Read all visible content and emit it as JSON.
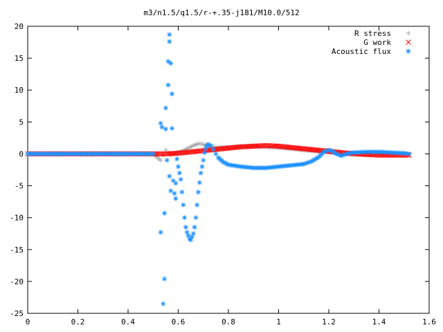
{
  "chart_data": {
    "type": "scatter",
    "title": "m3/n1.5/q1.5/r-+.35-j181/M10.0/512",
    "xlabel": "",
    "ylabel": "",
    "xlim": [
      0,
      1.6
    ],
    "ylim": [
      -25,
      20
    ],
    "x_ticks": [
      "0",
      "0.2",
      "0.4",
      "0.6",
      "0.8",
      "1",
      "1.2",
      "1.4",
      "1.6"
    ],
    "y_ticks": [
      "20",
      "15",
      "10",
      "5",
      "0",
      "-5",
      "-10",
      "-15",
      "-20",
      "-25"
    ],
    "grid": false,
    "legend_position": "top-right",
    "series": [
      {
        "name": "R stress",
        "marker": "+",
        "color": "#a0a0a0",
        "points": [
          [
            0.0,
            0
          ],
          [
            0.1,
            0
          ],
          [
            0.2,
            0
          ],
          [
            0.3,
            0
          ],
          [
            0.4,
            0
          ],
          [
            0.5,
            0
          ],
          [
            0.53,
            -1.0
          ],
          [
            0.54,
            -0.3
          ],
          [
            0.55,
            0.6
          ],
          [
            0.56,
            0.2
          ],
          [
            0.57,
            -0.2
          ],
          [
            0.58,
            0
          ],
          [
            0.6,
            0.2
          ],
          [
            0.62,
            0.5
          ],
          [
            0.64,
            0.9
          ],
          [
            0.66,
            1.3
          ],
          [
            0.68,
            1.6
          ],
          [
            0.7,
            1.5
          ],
          [
            0.72,
            1.2
          ],
          [
            0.75,
            1.0
          ],
          [
            0.8,
            1.0
          ],
          [
            0.85,
            1.1
          ],
          [
            0.9,
            1.2
          ],
          [
            0.95,
            1.1
          ],
          [
            1.0,
            1.0
          ],
          [
            1.05,
            0.8
          ],
          [
            1.1,
            0.6
          ],
          [
            1.15,
            0.4
          ],
          [
            1.2,
            0.3
          ],
          [
            1.25,
            0.1
          ],
          [
            1.3,
            0.1
          ],
          [
            1.35,
            0.1
          ],
          [
            1.4,
            0.05
          ],
          [
            1.45,
            0.05
          ],
          [
            1.5,
            0
          ]
        ]
      },
      {
        "name": "G work",
        "marker": "x",
        "color": "#ff0000",
        "points": [
          [
            0.0,
            0
          ],
          [
            0.1,
            0
          ],
          [
            0.2,
            0
          ],
          [
            0.3,
            0
          ],
          [
            0.4,
            0
          ],
          [
            0.5,
            0
          ],
          [
            0.55,
            0
          ],
          [
            0.6,
            0.1
          ],
          [
            0.65,
            0.3
          ],
          [
            0.7,
            0.5
          ],
          [
            0.75,
            0.7
          ],
          [
            0.8,
            0.9
          ],
          [
            0.85,
            1.1
          ],
          [
            0.9,
            1.2
          ],
          [
            0.95,
            1.3
          ],
          [
            1.0,
            1.2
          ],
          [
            1.05,
            1.0
          ],
          [
            1.1,
            0.8
          ],
          [
            1.15,
            0.6
          ],
          [
            1.2,
            0.4
          ],
          [
            1.25,
            0.2
          ],
          [
            1.3,
            0.0
          ],
          [
            1.35,
            -0.1
          ],
          [
            1.4,
            -0.2
          ],
          [
            1.45,
            -0.2
          ],
          [
            1.5,
            -0.2
          ],
          [
            1.52,
            -0.2
          ]
        ]
      },
      {
        "name": "Acoustic flux",
        "marker": "*",
        "color": "#1e90ff",
        "points": [
          [
            0.0,
            0
          ],
          [
            0.05,
            0
          ],
          [
            0.1,
            0
          ],
          [
            0.15,
            0
          ],
          [
            0.2,
            0
          ],
          [
            0.25,
            0
          ],
          [
            0.3,
            0
          ],
          [
            0.35,
            0
          ],
          [
            0.4,
            0
          ],
          [
            0.45,
            0
          ],
          [
            0.5,
            0
          ],
          [
            0.53,
            4.8
          ],
          [
            0.535,
            4.2
          ],
          [
            0.53,
            -12.3
          ],
          [
            0.545,
            -9.3
          ],
          [
            0.545,
            -19.6
          ],
          [
            0.54,
            -23.5
          ],
          [
            0.55,
            3.9
          ],
          [
            0.55,
            7.2
          ],
          [
            0.555,
            -1.0
          ],
          [
            0.56,
            10.8
          ],
          [
            0.56,
            14.5
          ],
          [
            0.565,
            17.6
          ],
          [
            0.565,
            18.7
          ],
          [
            0.565,
            -3.5
          ],
          [
            0.57,
            -5.8
          ],
          [
            0.57,
            14.2
          ],
          [
            0.575,
            9.4
          ],
          [
            0.575,
            4.0
          ],
          [
            0.58,
            -4.2
          ],
          [
            0.585,
            -6.2
          ],
          [
            0.59,
            -7.0
          ],
          [
            0.59,
            -4.6
          ],
          [
            0.595,
            -0.8
          ],
          [
            0.6,
            -2.0
          ],
          [
            0.605,
            -3.0
          ],
          [
            0.61,
            -4.0
          ],
          [
            0.615,
            -6.0
          ],
          [
            0.62,
            -8.0
          ],
          [
            0.625,
            -10.0
          ],
          [
            0.63,
            -11.5
          ],
          [
            0.635,
            -12.3
          ],
          [
            0.64,
            -12.8
          ],
          [
            0.645,
            -13.3
          ],
          [
            0.65,
            -13.5
          ],
          [
            0.655,
            -13.0
          ],
          [
            0.66,
            -12.5
          ],
          [
            0.665,
            -11.5
          ],
          [
            0.67,
            -10.0
          ],
          [
            0.675,
            -8.0
          ],
          [
            0.68,
            -6.0
          ],
          [
            0.685,
            -4.5
          ],
          [
            0.69,
            -3.0
          ],
          [
            0.695,
            -2.0
          ],
          [
            0.7,
            -1.0
          ],
          [
            0.705,
            0.2
          ],
          [
            0.71,
            0.9
          ],
          [
            0.715,
            1.3
          ],
          [
            0.72,
            1.5
          ],
          [
            0.73,
            1.3
          ],
          [
            0.74,
            0.7
          ],
          [
            0.75,
            0.0
          ],
          [
            0.76,
            -0.6
          ],
          [
            0.78,
            -1.3
          ],
          [
            0.8,
            -1.7
          ],
          [
            0.85,
            -2.0
          ],
          [
            0.9,
            -2.2
          ],
          [
            0.95,
            -2.2
          ],
          [
            1.0,
            -2.0
          ],
          [
            1.05,
            -1.8
          ],
          [
            1.1,
            -1.6
          ],
          [
            1.13,
            -1.2
          ],
          [
            1.16,
            -0.5
          ],
          [
            1.18,
            0.3
          ],
          [
            1.2,
            0.6
          ],
          [
            1.21,
            0.5
          ],
          [
            1.23,
            0.0
          ],
          [
            1.25,
            -0.3
          ],
          [
            1.27,
            0.0
          ],
          [
            1.3,
            0.2
          ],
          [
            1.35,
            0.3
          ],
          [
            1.4,
            0.3
          ],
          [
            1.45,
            0.2
          ],
          [
            1.5,
            0.1
          ],
          [
            1.52,
            0.0
          ]
        ]
      }
    ]
  }
}
